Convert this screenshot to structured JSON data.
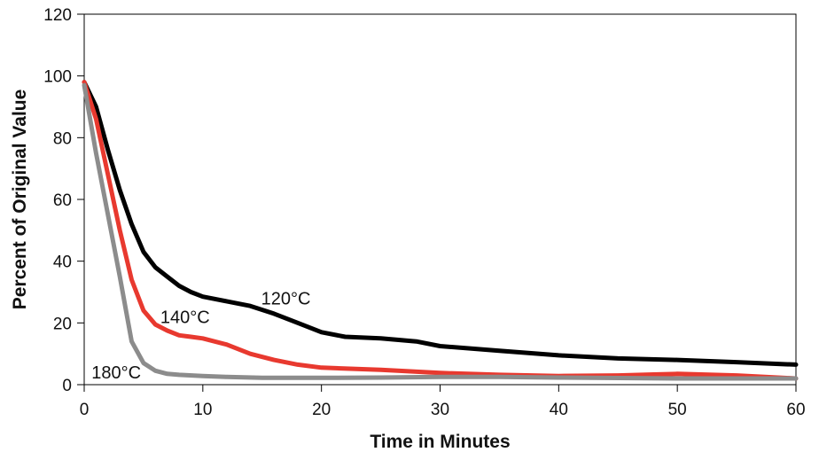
{
  "chart_data": {
    "type": "line",
    "title": "",
    "xlabel": "Time in Minutes",
    "ylabel": "Percent of Original Value",
    "xlim": [
      0,
      60
    ],
    "ylim": [
      0,
      120
    ],
    "x_ticks": [
      0,
      10,
      20,
      30,
      40,
      50,
      60
    ],
    "y_ticks": [
      0,
      20,
      40,
      60,
      80,
      100,
      120
    ],
    "x_tick_labels": [
      "0",
      "10",
      "20",
      "30",
      "40",
      "50",
      "60"
    ],
    "y_tick_labels": [
      "0",
      "20",
      "40",
      "60",
      "80",
      "100",
      "120"
    ],
    "grid": false,
    "legend": "none",
    "series": [
      {
        "name": "120°C",
        "color": "#000000",
        "points": [
          [
            0,
            98
          ],
          [
            1,
            90
          ],
          [
            2,
            76
          ],
          [
            3,
            63
          ],
          [
            4,
            52
          ],
          [
            5,
            43
          ],
          [
            6,
            38
          ],
          [
            7,
            35
          ],
          [
            8,
            32
          ],
          [
            9,
            30
          ],
          [
            10,
            28.5
          ],
          [
            12,
            27
          ],
          [
            14,
            25.5
          ],
          [
            16,
            23
          ],
          [
            18,
            20
          ],
          [
            20,
            17
          ],
          [
            22,
            15.5
          ],
          [
            25,
            15
          ],
          [
            28,
            14
          ],
          [
            30,
            12.5
          ],
          [
            35,
            11
          ],
          [
            40,
            9.5
          ],
          [
            45,
            8.5
          ],
          [
            50,
            8
          ],
          [
            55,
            7.3
          ],
          [
            60,
            6.5
          ]
        ],
        "label_at": [
          17,
          28
        ]
      },
      {
        "name": "140°C",
        "color": "#e8392f",
        "points": [
          [
            0,
            98
          ],
          [
            1,
            86
          ],
          [
            2,
            68
          ],
          [
            3,
            50
          ],
          [
            4,
            34
          ],
          [
            5,
            24
          ],
          [
            6,
            19.5
          ],
          [
            7,
            17.5
          ],
          [
            8,
            16
          ],
          [
            9,
            15.5
          ],
          [
            10,
            15
          ],
          [
            12,
            13
          ],
          [
            14,
            10
          ],
          [
            16,
            8
          ],
          [
            18,
            6.5
          ],
          [
            20,
            5.5
          ],
          [
            25,
            4.8
          ],
          [
            30,
            3.8
          ],
          [
            35,
            3.2
          ],
          [
            40,
            2.8
          ],
          [
            45,
            3
          ],
          [
            48,
            3.3
          ],
          [
            50,
            3.5
          ],
          [
            55,
            3
          ],
          [
            60,
            2
          ]
        ],
        "label_at": [
          8.5,
          22
        ]
      },
      {
        "name": "180°C",
        "color": "#8c8c8c",
        "points": [
          [
            0,
            97
          ],
          [
            1,
            75
          ],
          [
            2,
            55
          ],
          [
            3,
            35
          ],
          [
            4,
            14
          ],
          [
            5,
            7
          ],
          [
            6,
            4.5
          ],
          [
            7,
            3.5
          ],
          [
            8,
            3.2
          ],
          [
            10,
            2.8
          ],
          [
            12,
            2.5
          ],
          [
            15,
            2.2
          ],
          [
            20,
            2.2
          ],
          [
            25,
            2.3
          ],
          [
            30,
            2.5
          ],
          [
            35,
            2.5
          ],
          [
            40,
            2.3
          ],
          [
            50,
            2
          ],
          [
            60,
            2
          ]
        ],
        "label_at": [
          2.7,
          4
        ]
      }
    ]
  }
}
